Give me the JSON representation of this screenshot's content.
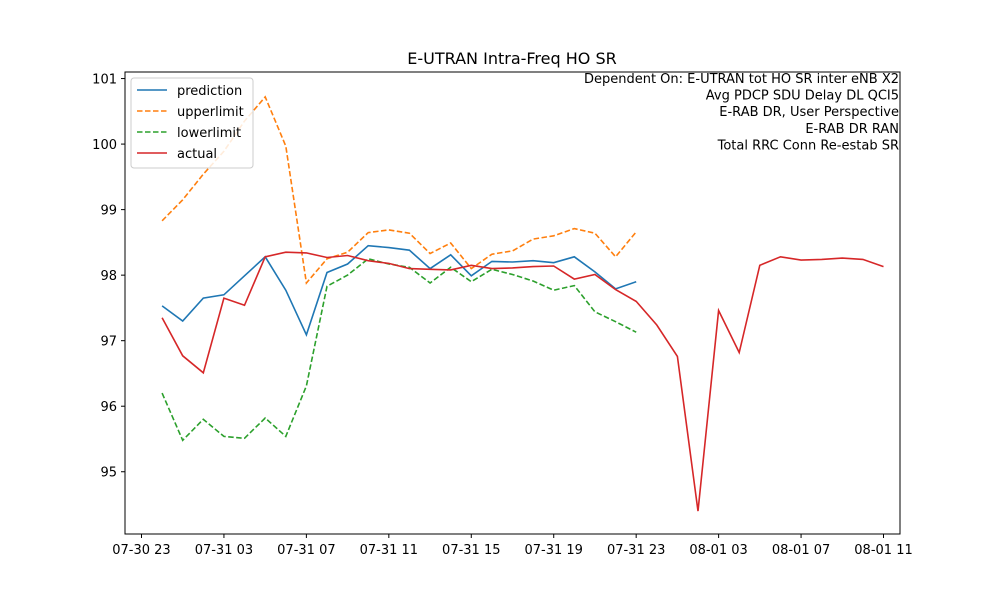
{
  "chart_data": {
    "type": "line",
    "title": "E-UTRAN Intra-Freq HO SR",
    "xlabel": "",
    "ylabel": "",
    "x_start": "07-31 00",
    "x_step_hours": 1,
    "xlim": [
      -0.8,
      36.8
    ],
    "ylim": [
      94.05,
      101.1
    ],
    "x_ticks": [
      {
        "x": 0,
        "label": "07-30 23"
      },
      {
        "x": 4,
        "label": "07-31 03"
      },
      {
        "x": 8,
        "label": "07-31 07"
      },
      {
        "x": 12,
        "label": "07-31 11"
      },
      {
        "x": 16,
        "label": "07-31 15"
      },
      {
        "x": 20,
        "label": "07-31 19"
      },
      {
        "x": 24,
        "label": "07-31 23"
      },
      {
        "x": 28,
        "label": "08-01 03"
      },
      {
        "x": 32,
        "label": "08-01 07"
      },
      {
        "x": 36,
        "label": "08-01 11"
      }
    ],
    "y_ticks": [
      {
        "y": 95,
        "label": "95"
      },
      {
        "y": 96,
        "label": "96"
      },
      {
        "y": 97,
        "label": "97"
      },
      {
        "y": 98,
        "label": "98"
      },
      {
        "y": 99,
        "label": "99"
      },
      {
        "y": 100,
        "label": "100"
      },
      {
        "y": 101,
        "label": "101"
      }
    ],
    "grid": false,
    "legend_position": "top-left",
    "annotation_lines": [
      "Dependent On: E-UTRAN tot HO SR inter eNB X2",
      "Avg PDCP SDU Delay DL QCI5",
      "E-RAB DR, User Perspective",
      "E-RAB DR RAN",
      "Total RRC Conn Re-estab SR"
    ],
    "series": [
      {
        "name": "prediction",
        "color": "#1f77b4",
        "dash": "solid",
        "x_start": 1,
        "values": [
          97.53,
          97.3,
          97.65,
          97.7,
          97.99,
          98.28,
          97.77,
          97.09,
          98.04,
          98.17,
          98.45,
          98.42,
          98.38,
          98.1,
          98.31,
          97.99,
          98.21,
          98.2,
          98.22,
          98.19,
          98.28,
          98.05,
          97.79,
          97.9
        ]
      },
      {
        "name": "upperlimit",
        "color": "#ff7f0e",
        "dash": "dashed",
        "x_start": 1,
        "values": [
          98.83,
          99.15,
          99.54,
          99.89,
          100.35,
          100.72,
          99.97,
          97.88,
          98.25,
          98.35,
          98.65,
          98.69,
          98.64,
          98.33,
          98.49,
          98.1,
          98.32,
          98.37,
          98.55,
          98.6,
          98.71,
          98.64,
          98.28,
          98.66
        ]
      },
      {
        "name": "lowerlimit",
        "color": "#2ca02c",
        "dash": "dashed",
        "x_start": 1,
        "values": [
          96.2,
          95.48,
          95.8,
          95.54,
          95.51,
          95.82,
          95.54,
          96.31,
          97.83,
          98.0,
          98.25,
          98.17,
          98.12,
          97.88,
          98.12,
          97.9,
          98.09,
          98.01,
          97.91,
          97.77,
          97.84,
          97.44,
          97.29,
          97.13
        ]
      },
      {
        "name": "actual",
        "color": "#d62728",
        "dash": "solid",
        "x_start": 1,
        "values": [
          97.35,
          96.77,
          96.51,
          97.65,
          97.54,
          98.28,
          98.35,
          98.34,
          98.27,
          98.3,
          98.22,
          98.18,
          98.1,
          98.09,
          98.08,
          98.15,
          98.1,
          98.11,
          98.13,
          98.14,
          97.94,
          98.01,
          97.78,
          97.6,
          97.24,
          96.76,
          94.4,
          97.46,
          96.82,
          98.15,
          98.28,
          98.23,
          98.24,
          98.26,
          98.24,
          98.13
        ]
      }
    ]
  }
}
